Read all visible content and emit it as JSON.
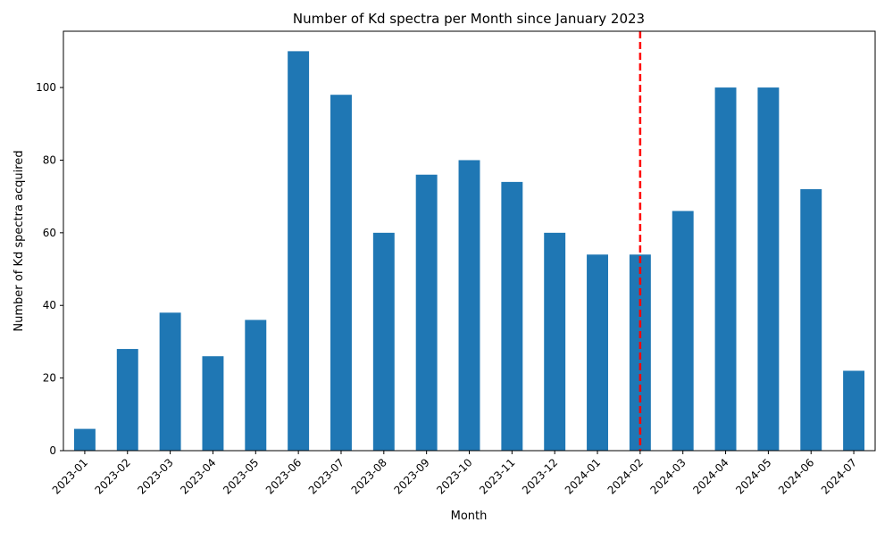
{
  "chart_data": {
    "type": "bar",
    "title": "Number of Kd spectra per Month since January 2023",
    "xlabel": "Month",
    "ylabel": "Number of Kd spectra acquired",
    "categories": [
      "2023-01",
      "2023-02",
      "2023-03",
      "2023-04",
      "2023-05",
      "2023-06",
      "2023-07",
      "2023-08",
      "2023-09",
      "2023-10",
      "2023-11",
      "2023-12",
      "2024-01",
      "2024-02",
      "2024-03",
      "2024-04",
      "2024-05",
      "2024-06",
      "2024-07"
    ],
    "values": [
      6,
      28,
      38,
      26,
      36,
      110,
      98,
      60,
      76,
      80,
      74,
      60,
      54,
      54,
      66,
      100,
      100,
      72,
      22
    ],
    "ylim": [
      0,
      115.5
    ],
    "yticks": [
      0,
      20,
      40,
      60,
      80,
      100
    ],
    "bar_color": "#1f77b4",
    "grid": false,
    "reference_line": {
      "category": "2024-02",
      "color": "#ff0000",
      "style": "dashed"
    }
  }
}
